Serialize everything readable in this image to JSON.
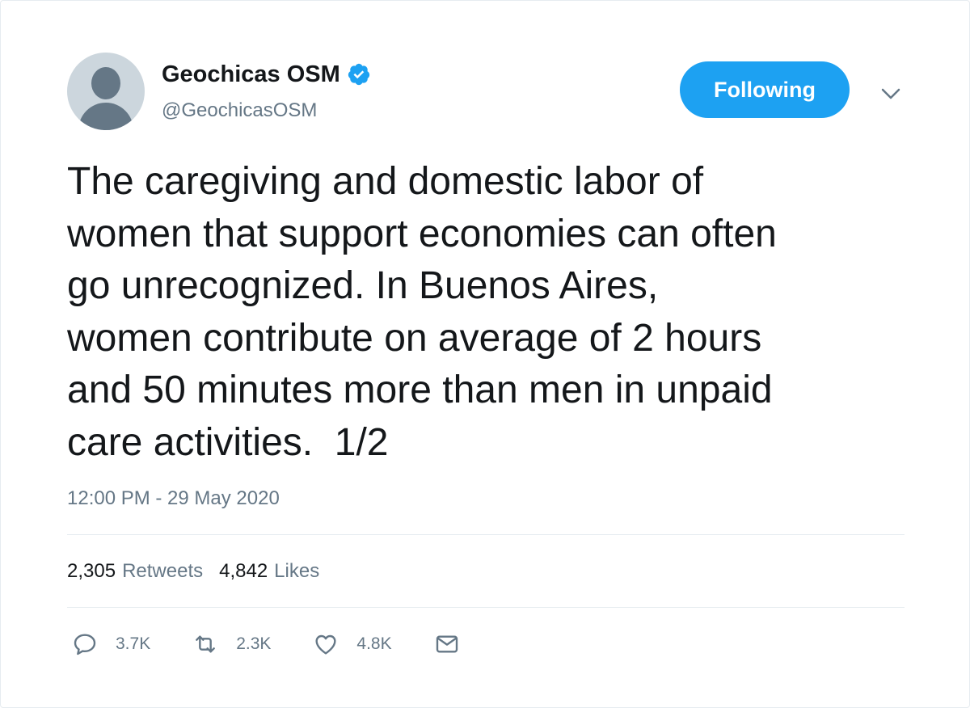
{
  "colors": {
    "accent": "#1da1f2",
    "text_primary": "#14171a",
    "text_secondary": "#657786",
    "divider": "#e6ecf0"
  },
  "author": {
    "display_name": "Geochicas OSM",
    "handle": "@GeochicasOSM",
    "verified_icon": "verified-badge-icon",
    "avatar_icon": "default-avatar-icon"
  },
  "follow_button": {
    "label": "Following"
  },
  "menu_icon": "chevron-down-icon",
  "tweet": {
    "text": "The caregiving and domestic labor of\nwomen that support economies can often\ngo unrecognized. In Buenos Aires,\nwomen contribute on average of 2 hours\nand 50 minutes more than men in unpaid\ncare activities.  1/2",
    "timestamp": "12:00 PM - 29 May 2020"
  },
  "stats": {
    "retweets": {
      "count": "2,305",
      "label": "Retweets"
    },
    "likes": {
      "count": "4,842",
      "label": "Likes"
    }
  },
  "actions": {
    "reply": {
      "icon": "reply-icon",
      "count": "3.7K"
    },
    "retweet": {
      "icon": "retweet-icon",
      "count": "2.3K"
    },
    "like": {
      "icon": "heart-icon",
      "count": "4.8K"
    },
    "message": {
      "icon": "envelope-icon"
    }
  }
}
